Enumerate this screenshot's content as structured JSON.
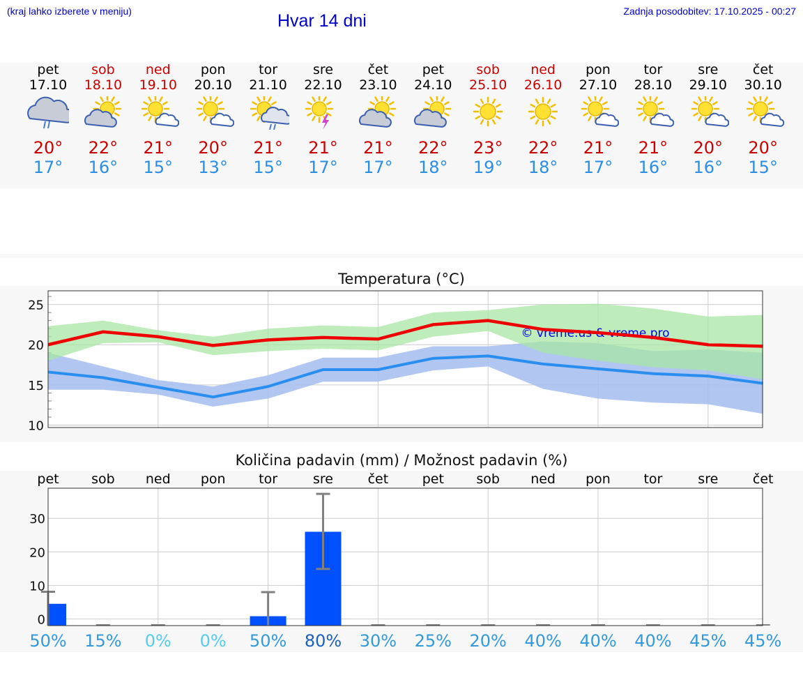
{
  "header": {
    "hint": "(kraj lahko izberete v meniju)",
    "title": "Hvar 14 dni",
    "updated": "Zadnja posodobitev: 17.10.2025 - 00:27"
  },
  "days": [
    {
      "name": "pet",
      "date": "17.10",
      "weekend": false,
      "icon": "cloud-rain-icon",
      "max": "20°",
      "min": "17°"
    },
    {
      "name": "sob",
      "date": "18.10",
      "weekend": true,
      "icon": "sun-cloud-icon",
      "max": "22°",
      "min": "16°"
    },
    {
      "name": "ned",
      "date": "19.10",
      "weekend": true,
      "icon": "sun-small-cloud-icon",
      "max": "21°",
      "min": "15°"
    },
    {
      "name": "pon",
      "date": "20.10",
      "weekend": false,
      "icon": "sun-small-cloud-icon",
      "max": "20°",
      "min": "13°"
    },
    {
      "name": "tor",
      "date": "21.10",
      "weekend": false,
      "icon": "sun-cloud-rain-icon",
      "max": "21°",
      "min": "15°"
    },
    {
      "name": "sre",
      "date": "22.10",
      "weekend": false,
      "icon": "sun-thunder-icon",
      "max": "21°",
      "min": "17°"
    },
    {
      "name": "čet",
      "date": "23.10",
      "weekend": false,
      "icon": "sun-cloud-icon",
      "max": "21°",
      "min": "17°"
    },
    {
      "name": "pet",
      "date": "24.10",
      "weekend": false,
      "icon": "sun-cloud-icon",
      "max": "22°",
      "min": "18°"
    },
    {
      "name": "sob",
      "date": "25.10",
      "weekend": true,
      "icon": "sun-icon",
      "max": "23°",
      "min": "19°"
    },
    {
      "name": "ned",
      "date": "26.10",
      "weekend": true,
      "icon": "sun-icon",
      "max": "22°",
      "min": "18°"
    },
    {
      "name": "pon",
      "date": "27.10",
      "weekend": false,
      "icon": "sun-small-cloud-icon",
      "max": "21°",
      "min": "17°"
    },
    {
      "name": "tor",
      "date": "28.10",
      "weekend": false,
      "icon": "sun-small-cloud-icon",
      "max": "21°",
      "min": "16°"
    },
    {
      "name": "sre",
      "date": "29.10",
      "weekend": false,
      "icon": "sun-small-cloud-icon",
      "max": "20°",
      "min": "16°"
    },
    {
      "name": "čet",
      "date": "30.10",
      "weekend": false,
      "icon": "sun-small-cloud-icon",
      "max": "20°",
      "min": "15°"
    }
  ],
  "colors": {
    "max": "#ee0000",
    "min": "#2a8ef0",
    "max_band": "#a8e6a4",
    "min_band": "#a8c0f0",
    "overlap_band": "#82c4a8",
    "bar": "#0050ff",
    "error": "#808080",
    "watermark": "#0000ee"
  },
  "chart_data": [
    {
      "type": "line",
      "title": "Temperatura (°C)",
      "watermark": "© vreme.us & vreme.pro",
      "ylim": [
        9.7,
        26.7
      ],
      "yticks": [
        10,
        15,
        20,
        25
      ],
      "grid": true,
      "x": [
        0,
        1,
        2,
        3,
        4,
        5,
        6,
        7,
        8,
        9,
        10,
        11,
        12,
        13
      ],
      "series": [
        {
          "values": [
            20.0,
            21.6,
            21.0,
            19.9,
            20.6,
            20.9,
            20.7,
            22.5,
            23.0,
            21.9,
            21.5,
            20.9,
            20.0,
            19.8
          ],
          "band_low": [
            18.0,
            20.2,
            20.3,
            18.7,
            19.2,
            19.5,
            19.3,
            21.0,
            21.7,
            19.0,
            18.0,
            17.2,
            16.8,
            15.7
          ],
          "band_high": [
            22.3,
            23.0,
            21.8,
            21.0,
            22.0,
            22.4,
            22.2,
            24.0,
            24.3,
            25.0,
            25.1,
            24.5,
            23.5,
            23.7
          ]
        },
        {
          "values": [
            16.6,
            15.9,
            14.7,
            13.5,
            14.8,
            16.9,
            16.9,
            18.3,
            18.6,
            17.6,
            17.0,
            16.4,
            16.1,
            15.2
          ],
          "band_low": [
            14.4,
            14.4,
            13.8,
            12.3,
            13.3,
            15.4,
            15.4,
            16.8,
            17.3,
            14.5,
            13.3,
            12.8,
            12.6,
            11.4
          ],
          "band_high": [
            19.0,
            17.3,
            15.6,
            14.8,
            16.2,
            18.4,
            18.4,
            19.8,
            19.8,
            20.4,
            20.2,
            19.2,
            19.4,
            19.0
          ]
        }
      ]
    },
    {
      "type": "bar",
      "title": "Količina padavin (mm) / Možnost padavin (%)",
      "categories": [
        "pet",
        "sob",
        "ned",
        "pon",
        "tor",
        "sre",
        "čet",
        "pet",
        "sob",
        "ned",
        "pon",
        "tor",
        "sre",
        "čet"
      ],
      "values": [
        4.5,
        0,
        0,
        0,
        0.8,
        26,
        0,
        0,
        0,
        0,
        0,
        0,
        0,
        0
      ],
      "error_high": [
        8.1,
        0,
        0,
        0,
        8.0,
        37.3,
        0,
        0,
        0,
        0,
        0,
        0,
        0,
        0
      ],
      "error_low": [
        0,
        0,
        0,
        0,
        0,
        14.9,
        0,
        0,
        0,
        0,
        0,
        0,
        0,
        0
      ],
      "ylim": [
        -2,
        39
      ],
      "yticks": [
        0,
        10,
        20,
        30
      ],
      "probabilities": [
        "50%",
        "15%",
        "0%",
        "0%",
        "50%",
        "80%",
        "30%",
        "25%",
        "20%",
        "40%",
        "40%",
        "40%",
        "45%",
        "45%"
      ],
      "probability_colors": [
        "#3399dd",
        "#3399dd",
        "#55ccee",
        "#55ccee",
        "#3399dd",
        "#1a5fbf",
        "#3399dd",
        "#3399dd",
        "#3399dd",
        "#3399dd",
        "#3399dd",
        "#3399dd",
        "#3399dd",
        "#3399dd"
      ]
    }
  ]
}
